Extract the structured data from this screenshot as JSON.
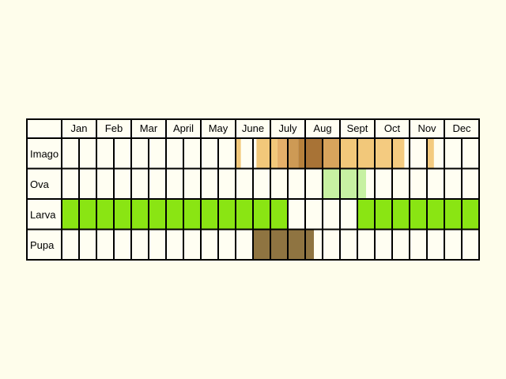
{
  "chart_data": {
    "type": "table",
    "months": [
      "Jan",
      "Feb",
      "Mar",
      "April",
      "May",
      "June",
      "July",
      "Aug",
      "Sept",
      "Oct",
      "Nov",
      "Dec"
    ],
    "rows": [
      {
        "label": "Imago",
        "segments": [
          {
            "start": 6.0,
            "end": 6.15,
            "color": "#f2c87a"
          },
          {
            "start": 6.6,
            "end": 7.0,
            "color": "#f2c87a"
          },
          {
            "start": 7.0,
            "end": 7.2,
            "color": "#f2c87a"
          },
          {
            "start": 7.2,
            "end": 7.5,
            "color": "#e5b06a"
          },
          {
            "start": 7.5,
            "end": 7.8,
            "color": "#cd9a55"
          },
          {
            "start": 7.8,
            "end": 8.0,
            "color": "#b7813c"
          },
          {
            "start": 8.0,
            "end": 8.5,
            "color": "#a87336"
          },
          {
            "start": 8.5,
            "end": 9.0,
            "color": "#d8a45c"
          },
          {
            "start": 9.0,
            "end": 9.5,
            "color": "#f2c87a"
          },
          {
            "start": 9.5,
            "end": 10.0,
            "color": "#f2c87a"
          },
          {
            "start": 10.0,
            "end": 10.5,
            "color": "#f4cb80"
          },
          {
            "start": 10.5,
            "end": 10.85,
            "color": "#f4cb80"
          },
          {
            "start": 11.5,
            "end": 11.7,
            "color": "#f4cb80"
          }
        ]
      },
      {
        "label": "Ova",
        "segments": [
          {
            "start": 8.5,
            "end": 9.75,
            "color": "#c7f1a2"
          }
        ]
      },
      {
        "label": "Larva",
        "segments": [
          {
            "start": 1.0,
            "end": 7.5,
            "color": "#8ae513"
          },
          {
            "start": 9.5,
            "end": 13.0,
            "color": "#8ae513"
          }
        ]
      },
      {
        "label": "Pupa",
        "segments": [
          {
            "start": 6.5,
            "end": 8.25,
            "color": "#8f7441"
          }
        ]
      }
    ]
  }
}
